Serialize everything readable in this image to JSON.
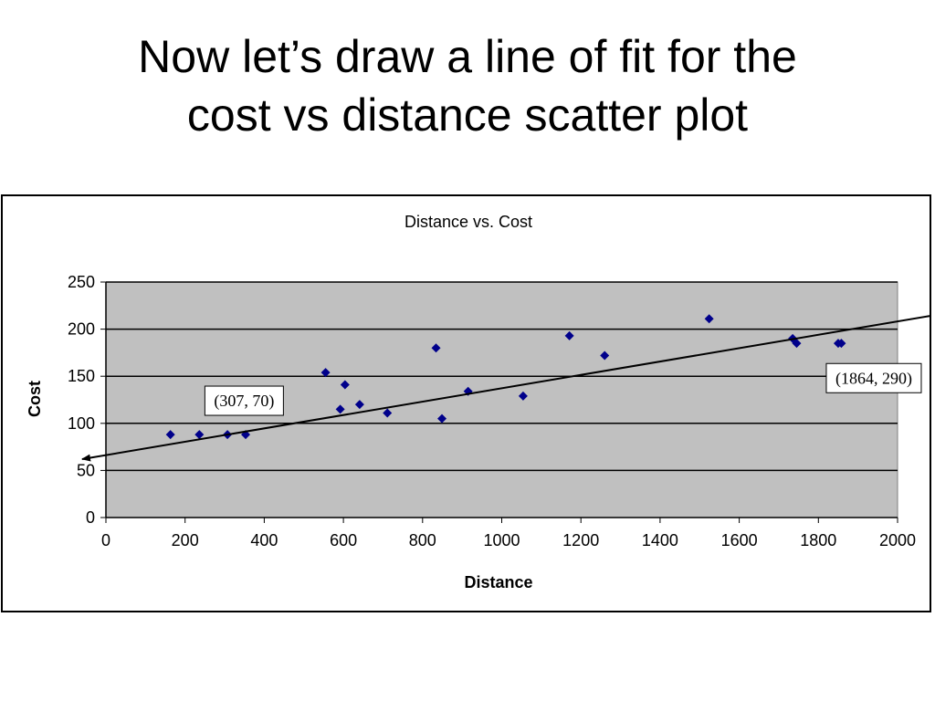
{
  "slide": {
    "title_line1": "Now let’s draw a line of fit for the",
    "title_line2": "cost vs distance scatter plot"
  },
  "chart_data": {
    "type": "scatter",
    "title": "Distance vs. Cost",
    "xlabel": "Distance",
    "ylabel": "Cost",
    "xlim": [
      0,
      2000
    ],
    "ylim": [
      0,
      250
    ],
    "x_ticks": [
      "0",
      "200",
      "400",
      "600",
      "800",
      "1000",
      "1200",
      "1400",
      "1600",
      "1800",
      "2000"
    ],
    "y_ticks": [
      "0",
      "50",
      "100",
      "150",
      "200",
      "250"
    ],
    "grid": "horizontal",
    "plot_background": "#c0c0c0",
    "marker_color": "#00008b",
    "series": [
      {
        "points": [
          [
            163,
            88
          ],
          [
            236,
            88
          ],
          [
            307,
            88
          ],
          [
            353,
            88
          ],
          [
            555,
            154
          ],
          [
            592,
            115
          ],
          [
            604,
            141
          ],
          [
            641,
            120
          ],
          [
            711,
            111
          ],
          [
            834,
            180
          ],
          [
            849,
            105
          ],
          [
            915,
            134
          ],
          [
            1054,
            129
          ],
          [
            1171,
            193
          ],
          [
            1260,
            172
          ],
          [
            1524,
            211
          ],
          [
            1735,
            190
          ],
          [
            1745,
            185
          ],
          [
            1850,
            185
          ],
          [
            1858,
            185
          ]
        ]
      }
    ],
    "fit_line": {
      "start": [
        -60,
        62
      ],
      "end": [
        2110,
        216
      ],
      "arrows": "both"
    },
    "annotations": [
      {
        "text": "(307, 70)",
        "x": 250,
        "y": 124
      },
      {
        "text": "(1864, 290)",
        "x": 1820,
        "y": 148
      }
    ]
  }
}
